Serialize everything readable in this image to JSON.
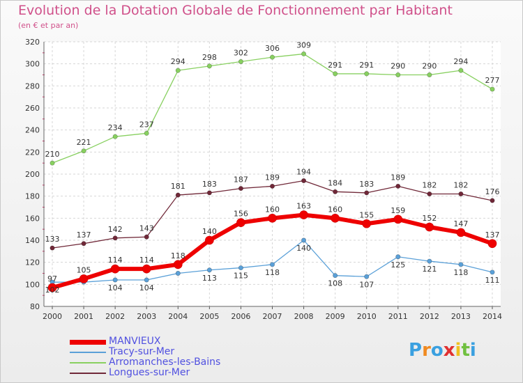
{
  "title": "Evolution de la Dotation Globale de Fonctionnement par Habitant",
  "subtitle": "(en € et par an)",
  "logo": {
    "letters": [
      "P",
      "r",
      "o",
      "x",
      "i",
      "t",
      "i"
    ],
    "colors": [
      "#3aa0e0",
      "#f08a20",
      "#3aa0e0",
      "#e03030",
      "#f0c020",
      "#70c040",
      "#3aa0e0"
    ]
  },
  "chart_data": {
    "type": "line",
    "x": [
      "2000",
      "2001",
      "2002",
      "2003",
      "2004",
      "2005",
      "2006",
      "2007",
      "2008",
      "2009",
      "2010",
      "2011",
      "2012",
      "2013",
      "2014"
    ],
    "ylim": [
      80,
      320
    ],
    "yticks": [
      80,
      100,
      120,
      140,
      160,
      180,
      200,
      220,
      240,
      260,
      280,
      300,
      320
    ],
    "grid": true,
    "legend_position": "bottom-left",
    "series": [
      {
        "name": "Arromanches-les-Bains",
        "color": "#88d060",
        "values": [
          210,
          221,
          234,
          237,
          294,
          298,
          302,
          306,
          309,
          291,
          291,
          290,
          290,
          294,
          277
        ]
      },
      {
        "name": "Longues-sur-Mer",
        "color": "#702838",
        "values": [
          133,
          137,
          142,
          143,
          181,
          183,
          187,
          189,
          194,
          184,
          183,
          189,
          182,
          182,
          176
        ]
      },
      {
        "name": "Tracy-sur-Mer",
        "color": "#5aa0d8",
        "values": [
          102,
          102,
          104,
          104,
          110,
          113,
          115,
          118,
          140,
          108,
          107,
          125,
          121,
          118,
          111
        ]
      },
      {
        "name": "MANVIEUX",
        "color": "#ee0000",
        "values": [
          97,
          105,
          114,
          114,
          118,
          140,
          156,
          160,
          163,
          160,
          155,
          159,
          152,
          147,
          137
        ]
      }
    ],
    "value_labels": {
      "Arromanches-les-Bains": [
        "210",
        "221",
        "234",
        "237",
        "294",
        "298",
        "302",
        "306",
        "309",
        "291",
        "291",
        "290",
        "290",
        "294",
        "277"
      ],
      "Longues-sur-Mer": [
        "133",
        "137",
        "142",
        "143",
        "181",
        "183",
        "187",
        "189",
        "194",
        "184",
        "183",
        "189",
        "182",
        "182",
        "176"
      ],
      "Tracy-sur-Mer": [
        "102",
        "",
        "104",
        "104",
        "",
        "113",
        "115",
        "118",
        "140",
        "108",
        "107",
        "125",
        "121",
        "118",
        "111"
      ],
      "MANVIEUX": [
        "97",
        "105",
        "114",
        "114",
        "118",
        "140",
        "156",
        "160",
        "163",
        "160",
        "155",
        "159",
        "152",
        "147",
        "137"
      ]
    },
    "legend_order": [
      "MANVIEUX",
      "Tracy-sur-Mer",
      "Arromanches-les-Bains",
      "Longues-sur-Mer"
    ]
  }
}
